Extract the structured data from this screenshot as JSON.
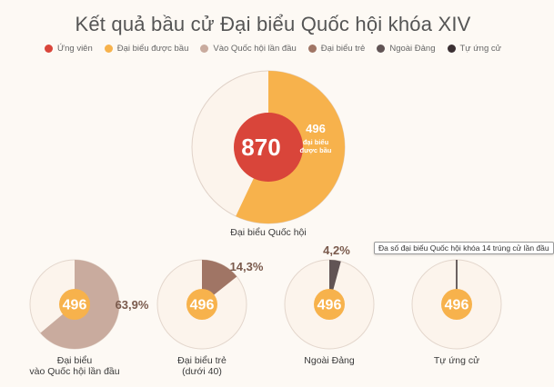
{
  "chart_data": {
    "type": "pie",
    "title": "Kết quả bầu cử Đại biểu Quốc hội khóa XIV",
    "legend": [
      {
        "label": "Ứng viên",
        "color": "#d9453a"
      },
      {
        "label": "Đại biểu được bầu",
        "color": "#f7b24c"
      },
      {
        "label": "Vào Quốc hội lần đầu",
        "color": "#c9ab9e"
      },
      {
        "label": "Đại biểu trẻ",
        "color": "#a07565"
      },
      {
        "label": "Ngoài Đảng",
        "color": "#615455"
      },
      {
        "label": "Tự ứng cử",
        "color": "#3b3033"
      }
    ],
    "main": {
      "candidates": 870,
      "elected": 496,
      "elected_label_line1": "đại biểu",
      "elected_label_line2": "được bầu",
      "caption": "Đại biểu Quốc hội"
    },
    "sub": [
      {
        "center": 496,
        "percent": 63.9,
        "percent_label": "63,9%",
        "caption1": "Đại biểu",
        "caption2": "vào Quốc hội lần đầu",
        "color": "#c9ab9e"
      },
      {
        "center": 496,
        "percent": 14.3,
        "percent_label": "14,3%",
        "caption1": "Đại biểu trẻ",
        "caption2": "(dưới 40)",
        "color": "#a07565"
      },
      {
        "center": 496,
        "percent": 4.2,
        "percent_label": "4,2%",
        "caption1": "Ngoài Đảng",
        "caption2": "",
        "color": "#615455"
      },
      {
        "center": 496,
        "percent": 0.4,
        "percent_label": "",
        "caption1": "Tự ứng cử",
        "caption2": "",
        "color": "#3b3033"
      }
    ],
    "tooltip": "Đa số đại biểu Quốc hội khóa 14 trúng cử lần đầu"
  }
}
